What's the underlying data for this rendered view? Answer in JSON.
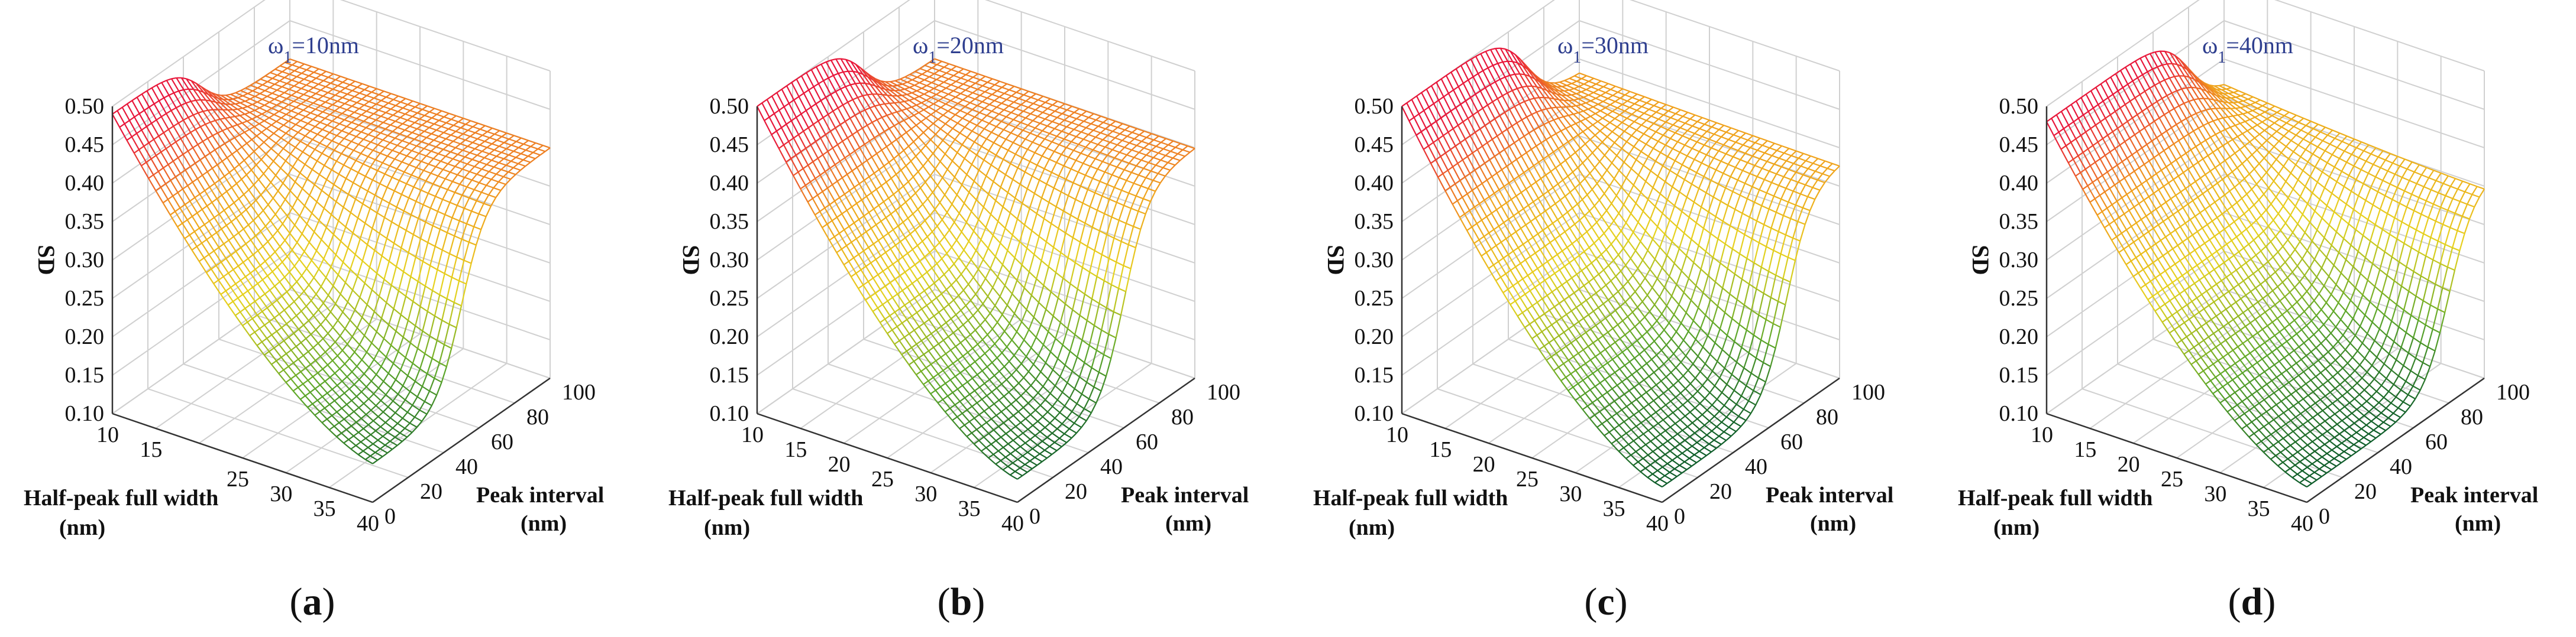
{
  "colors": {
    "low": "#0b5a2a",
    "lowmid": "#5ea82a",
    "mid": "#e6d21e",
    "midhigh": "#f0a21c",
    "high": "#e8173a",
    "title": "#2f3f8f",
    "grid": "#d0d0d0",
    "axis": "#333333"
  },
  "chart_data": [
    {
      "type": "surface",
      "panel": "a",
      "caption_label": "a",
      "title_prefix": "ω",
      "title_sub": "1",
      "title_suffix": "=10nm",
      "omega1_nm": 10,
      "xlabel": "Half-peak full width",
      "xlabel_unit": "(nm)",
      "ylabel": "Peak interval",
      "ylabel_unit": "(nm)",
      "zlabel": "SD",
      "x_ticks": [
        "10",
        "15",
        "25",
        "30",
        "35",
        "40"
      ],
      "y_ticks": [
        "0",
        "20",
        "40",
        "60",
        "80",
        "100"
      ],
      "z_ticks": [
        "0.10",
        "0.15",
        "0.20",
        "0.25",
        "0.30",
        "0.35",
        "0.40",
        "0.45",
        "0.50"
      ],
      "xlim": [
        10,
        40
      ],
      "ylim": [
        0,
        100
      ],
      "zlim": [
        0.1,
        0.5
      ],
      "surface": {
        "sd_max": 0.49,
        "sd_min": 0.15,
        "sd_plateau": 0.4,
        "edge_y_nm": 50
      }
    },
    {
      "type": "surface",
      "panel": "b",
      "caption_label": "b",
      "title_prefix": "ω",
      "title_sub": "1",
      "title_suffix": "=20nm",
      "omega1_nm": 20,
      "xlabel": "Half-peak full width",
      "xlabel_unit": "(nm)",
      "ylabel": "Peak interval",
      "ylabel_unit": "(nm)",
      "zlabel": "SD",
      "x_ticks": [
        "10",
        "15",
        "20",
        "25",
        "30",
        "35",
        "40"
      ],
      "y_ticks": [
        "0",
        "20",
        "40",
        "60",
        "80",
        "100"
      ],
      "z_ticks": [
        "0.10",
        "0.15",
        "0.20",
        "0.25",
        "0.30",
        "0.35",
        "0.40",
        "0.45",
        "0.50"
      ],
      "xlim": [
        10,
        40
      ],
      "ylim": [
        0,
        100
      ],
      "zlim": [
        0.1,
        0.5
      ],
      "surface": {
        "sd_max": 0.5,
        "sd_min": 0.13,
        "sd_plateau": 0.4,
        "edge_y_nm": 60
      }
    },
    {
      "type": "surface",
      "panel": "c",
      "caption_label": "c",
      "title_prefix": "ω",
      "title_sub": "1",
      "title_suffix": "=30nm",
      "omega1_nm": 30,
      "xlabel": "Half-peak full width",
      "xlabel_unit": "(nm)",
      "ylabel": "Peak interval",
      "ylabel_unit": "(nm)",
      "zlabel": "SD",
      "x_ticks": [
        "10",
        "15",
        "20",
        "25",
        "30",
        "35",
        "40"
      ],
      "y_ticks": [
        "0",
        "20",
        "40",
        "60",
        "80",
        "100"
      ],
      "z_ticks": [
        "0.10",
        "0.15",
        "0.20",
        "0.25",
        "0.30",
        "0.35",
        "0.40",
        "0.45",
        "0.50"
      ],
      "xlim": [
        10,
        40
      ],
      "ylim": [
        0,
        100
      ],
      "zlim": [
        0.1,
        0.5
      ],
      "surface": {
        "sd_max": 0.5,
        "sd_min": 0.12,
        "sd_plateau": 0.38,
        "edge_y_nm": 70
      }
    },
    {
      "type": "surface",
      "panel": "d",
      "caption_label": "d",
      "title_prefix": "ω",
      "title_sub": "1",
      "title_suffix": "=40nm",
      "omega1_nm": 40,
      "xlabel": "Half-peak full width",
      "xlabel_unit": "(nm)",
      "ylabel": "Peak interval",
      "ylabel_unit": "(nm)",
      "zlabel": "SD",
      "x_ticks": [
        "10",
        "15",
        "20",
        "25",
        "30",
        "35",
        "40"
      ],
      "y_ticks": [
        "0",
        "20",
        "40",
        "60",
        "80",
        "100"
      ],
      "z_ticks": [
        "0.10",
        "0.15",
        "0.20",
        "0.25",
        "0.30",
        "0.35",
        "0.40",
        "0.45",
        "0.50"
      ],
      "xlim": [
        10,
        40
      ],
      "ylim": [
        0,
        100
      ],
      "zlim": [
        0.1,
        0.5
      ],
      "surface": {
        "sd_max": 0.48,
        "sd_min": 0.12,
        "sd_plateau": 0.36,
        "edge_y_nm": 80
      }
    }
  ]
}
